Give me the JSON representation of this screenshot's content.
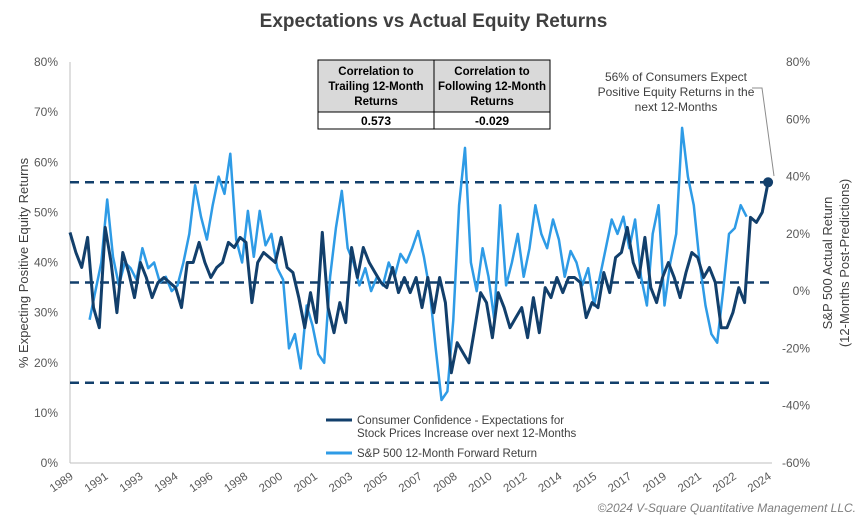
{
  "chart_data": {
    "type": "line",
    "title": "Expectations vs Actual Equity Returns",
    "ylabel_left": "% Expecting Positive Equity Returns",
    "ylabel_right_line1": "S&P 500 Actual Return",
    "ylabel_right_line2": "(12-Months Post-Predictions)",
    "ylim_left": [
      0,
      80
    ],
    "ylim_right": [
      -60,
      80
    ],
    "left_ticks": [
      "0%",
      "10%",
      "20%",
      "30%",
      "40%",
      "50%",
      "60%",
      "70%",
      "80%"
    ],
    "right_ticks": [
      "-60%",
      "-40%",
      "-20%",
      "0%",
      "20%",
      "40%",
      "60%",
      "80%"
    ],
    "xlim": [
      1989,
      2024.9
    ],
    "x_ticks": [
      "1989",
      "1991",
      "1993",
      "1994",
      "1996",
      "1998",
      "2000",
      "2001",
      "2003",
      "2005",
      "2007",
      "2008",
      "2010",
      "2012",
      "2014",
      "2015",
      "2017",
      "2019",
      "2021",
      "2022",
      "2024"
    ],
    "horizontal_reference_lines_left_pct": [
      56,
      36,
      16
    ],
    "table": {
      "headers": [
        "Correlation to Trailing 12-Month Returns",
        "Correlation to Following 12-Month Returns"
      ],
      "header_lines": [
        [
          "Correlation to",
          "Trailing 12-Month",
          "Returns"
        ],
        [
          "Correlation to",
          "Following 12-Month",
          "Returns"
        ]
      ],
      "values": [
        "0.573",
        "-0.029"
      ]
    },
    "annotation_lines": [
      "56% of Consumers Expect",
      "Positive Equity Returns in the",
      "next 12-Months"
    ],
    "legend": [
      {
        "label_lines": [
          "Consumer Confidence - Expectations for",
          "Stock Prices Increase over next 12-Months"
        ],
        "color": "#123f6b"
      },
      {
        "label_lines": [
          "S&P 500 12-Month Forward Return"
        ],
        "color": "#2e9be6"
      }
    ],
    "copyright": "©2024 V-Square Quantitative Management LLC.",
    "series": [
      {
        "name": "Consumer Confidence - Expectations for Stock Prices Increase over next 12-Months",
        "axis": "left",
        "color": "#123f6b",
        "x": [
          1989.0,
          1989.3,
          1989.6,
          1989.9,
          1990.2,
          1990.5,
          1990.8,
          1991.1,
          1991.4,
          1991.7,
          1992.0,
          1992.3,
          1992.6,
          1992.9,
          1993.2,
          1993.5,
          1993.8,
          1994.1,
          1994.4,
          1994.7,
          1995.0,
          1995.3,
          1995.6,
          1995.9,
          1996.2,
          1996.5,
          1996.8,
          1997.1,
          1997.4,
          1997.7,
          1998.0,
          1998.3,
          1998.6,
          1998.9,
          1999.2,
          1999.5,
          1999.8,
          2000.1,
          2000.4,
          2000.7,
          2001.0,
          2001.3,
          2001.6,
          2001.9,
          2002.2,
          2002.5,
          2002.8,
          2003.1,
          2003.4,
          2003.7,
          2004.0,
          2004.3,
          2004.6,
          2004.9,
          2005.2,
          2005.5,
          2005.8,
          2006.1,
          2006.4,
          2006.7,
          2007.0,
          2007.3,
          2007.6,
          2007.9,
          2008.2,
          2008.5,
          2008.8,
          2009.1,
          2009.4,
          2009.7,
          2010.0,
          2010.3,
          2010.6,
          2010.9,
          2011.2,
          2011.5,
          2011.8,
          2012.1,
          2012.4,
          2012.7,
          2013.0,
          2013.3,
          2013.6,
          2013.9,
          2014.2,
          2014.5,
          2014.8,
          2015.1,
          2015.4,
          2015.7,
          2016.0,
          2016.3,
          2016.6,
          2016.9,
          2017.2,
          2017.5,
          2017.8,
          2018.1,
          2018.4,
          2018.7,
          2019.0,
          2019.3,
          2019.6,
          2019.9,
          2020.2,
          2020.5,
          2020.8,
          2021.1,
          2021.4,
          2021.7,
          2022.0,
          2022.3,
          2022.6,
          2022.9,
          2023.2,
          2023.5,
          2023.8,
          2024.1,
          2024.4,
          2024.7
        ],
        "values": [
          46,
          42,
          39,
          45,
          31,
          27,
          47,
          40,
          30,
          42,
          38,
          33,
          40,
          37,
          33,
          36,
          37,
          36,
          35,
          31,
          40,
          40,
          44,
          40,
          37,
          39,
          40,
          44,
          43,
          45,
          44,
          32,
          40,
          42,
          41,
          40,
          45,
          39,
          38,
          33,
          27,
          34,
          28,
          46,
          31,
          26,
          32,
          28,
          43,
          37,
          43,
          40,
          38,
          36,
          35,
          39,
          34,
          37,
          34,
          37,
          31,
          37,
          30,
          37,
          32,
          18,
          24,
          22,
          20,
          27,
          34,
          32,
          25,
          34,
          31,
          27,
          29,
          31,
          25,
          33,
          26,
          35,
          33,
          37,
          34,
          37,
          37,
          36,
          29,
          32,
          31,
          38,
          34,
          41,
          42,
          47,
          40,
          37,
          45,
          35,
          32,
          37,
          40,
          37,
          33,
          38,
          42,
          41,
          37,
          39,
          36,
          27,
          27,
          30,
          35,
          32,
          49,
          48,
          50,
          56
        ]
      },
      {
        "name": "S&P 500 12-Month Forward Return",
        "axis": "right",
        "color": "#2e9be6",
        "x": [
          1990.0,
          1990.3,
          1990.6,
          1990.9,
          1991.2,
          1991.5,
          1991.8,
          1992.1,
          1992.4,
          1992.7,
          1993.0,
          1993.3,
          1993.6,
          1993.9,
          1994.2,
          1994.5,
          1994.8,
          1995.1,
          1995.4,
          1995.7,
          1996.0,
          1996.3,
          1996.6,
          1996.9,
          1997.2,
          1997.5,
          1997.8,
          1998.1,
          1998.4,
          1998.7,
          1999.0,
          1999.3,
          1999.6,
          1999.9,
          2000.2,
          2000.5,
          2000.8,
          2001.1,
          2001.4,
          2001.7,
          2002.0,
          2002.3,
          2002.6,
          2002.9,
          2003.2,
          2003.5,
          2003.8,
          2004.1,
          2004.4,
          2004.7,
          2005.0,
          2005.3,
          2005.6,
          2005.9,
          2006.2,
          2006.5,
          2006.8,
          2007.1,
          2007.4,
          2007.7,
          2008.0,
          2008.3,
          2008.6,
          2008.9,
          2009.2,
          2009.5,
          2009.8,
          2010.1,
          2010.4,
          2010.7,
          2011.0,
          2011.3,
          2011.6,
          2011.9,
          2012.2,
          2012.5,
          2012.8,
          2013.1,
          2013.4,
          2013.7,
          2014.0,
          2014.3,
          2014.6,
          2014.9,
          2015.2,
          2015.5,
          2015.8,
          2016.1,
          2016.4,
          2016.7,
          2017.0,
          2017.3,
          2017.6,
          2017.9,
          2018.2,
          2018.5,
          2018.8,
          2019.1,
          2019.4,
          2019.7,
          2020.0,
          2020.3,
          2020.6,
          2020.9,
          2021.2,
          2021.5,
          2021.8,
          2022.1,
          2022.4,
          2022.7,
          2023.0,
          2023.3,
          2023.6
        ],
        "values": [
          -10,
          0,
          10,
          32,
          12,
          2,
          10,
          8,
          4,
          15,
          8,
          10,
          3,
          5,
          0,
          2,
          10,
          20,
          37,
          26,
          18,
          30,
          40,
          34,
          48,
          18,
          10,
          28,
          12,
          28,
          16,
          20,
          8,
          4,
          -20,
          -15,
          -27,
          -5,
          -12,
          -22,
          -25,
          5,
          22,
          35,
          15,
          10,
          2,
          8,
          0,
          5,
          2,
          10,
          5,
          13,
          10,
          15,
          21,
          12,
          0,
          -20,
          -38,
          -35,
          -10,
          30,
          50,
          10,
          0,
          15,
          5,
          -10,
          30,
          2,
          10,
          20,
          5,
          15,
          30,
          20,
          15,
          25,
          18,
          5,
          14,
          10,
          2,
          8,
          -5,
          5,
          15,
          25,
          20,
          26,
          15,
          25,
          5,
          -5,
          20,
          30,
          -5,
          10,
          20,
          57,
          40,
          30,
          10,
          -5,
          -15,
          -18,
          0,
          20,
          22,
          30,
          26
        ]
      }
    ]
  }
}
